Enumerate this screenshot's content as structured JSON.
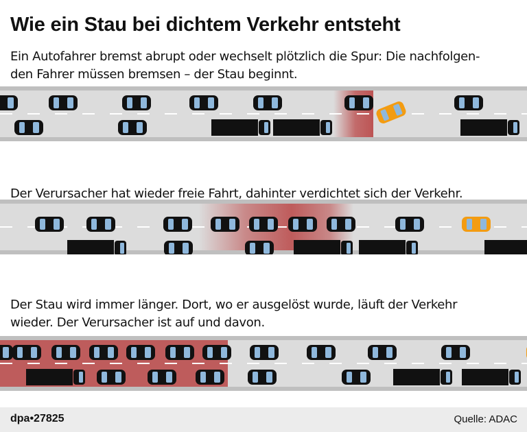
{
  "title": "Wie ein Stau bei dichtem Verkehr entsteht",
  "captions": [
    "Ein Autofahrer bremst abrupt oder wechselt plötzlich die Spur: Die nachfolgen-\nden Fahrer müssen bremsen – der Stau beginnt.",
    "Der Verursacher hat wieder freie Fahrt, dahinter verdichtet sich der Verkehr.",
    "Der Stau wird immer länger. Dort, wo er ausgelöst wurde, läuft der Verkehr\nwieder. Der Verursacher ist auf und davon."
  ],
  "footer": {
    "source": "dpa•27825",
    "credit": "Quelle: ADAC"
  },
  "colors": {
    "road": "#dcdcdc",
    "shoulder": "#bfbfbf",
    "lane_marking": "#ffffff",
    "vehicle": "#111111",
    "window": "#8fb8dc",
    "causer": "#f39c12",
    "jam": "#b94545"
  }
}
